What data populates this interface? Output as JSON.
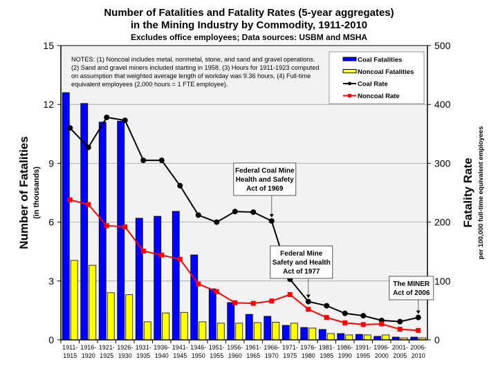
{
  "chart_data": {
    "type": "bar",
    "title": "Number of Fatalities and Fatality Rates (5-year aggregates)",
    "title2": "in the Mining Industry by Commodity, 1911-2010",
    "subtitle": "Excludes office employees; Data sources: USBM and MSHA",
    "ylabel": "Number of Fatalities",
    "ylabel_sub": "(in thousands)",
    "y2label": "Fatality Rate",
    "y2label_sub": "per 100,000 full-time equivalent employees",
    "ylim": [
      0,
      15
    ],
    "yticks": [
      "0",
      "3",
      "6",
      "9",
      "12",
      "15"
    ],
    "y2lim": [
      0,
      500
    ],
    "y2ticks": [
      "0",
      "100",
      "200",
      "300",
      "400",
      "500"
    ],
    "grid": true,
    "legend_position": "top-right",
    "categories": [
      [
        "1911-",
        "1915"
      ],
      [
        "1916-",
        "1920"
      ],
      [
        "1921-",
        "1925"
      ],
      [
        "1926-",
        "1930"
      ],
      [
        "1931-",
        "1935"
      ],
      [
        "1936-",
        "1940"
      ],
      [
        "1941-",
        "1945"
      ],
      [
        "1946-",
        "1950"
      ],
      [
        "1951-",
        "1955"
      ],
      [
        "1956-",
        "1960"
      ],
      [
        "1961-",
        "1965"
      ],
      [
        "1966-",
        "1970"
      ],
      [
        "1971-",
        "1975"
      ],
      [
        "1976-",
        "1980"
      ],
      [
        "1981-",
        "1985"
      ],
      [
        "1986-",
        "1990"
      ],
      [
        "1991-",
        "1995"
      ],
      [
        "1996-",
        "2000"
      ],
      [
        "2001-",
        "2005"
      ],
      [
        "2006-",
        "2010"
      ]
    ],
    "series": [
      {
        "name": "Coal Fatalities",
        "type": "bar",
        "axis": "left",
        "color": "#0000ff",
        "values": [
          12.6,
          12.05,
          11.1,
          11.15,
          6.2,
          6.3,
          6.55,
          4.33,
          2.6,
          1.9,
          1.3,
          1.2,
          0.74,
          0.63,
          0.53,
          0.32,
          0.28,
          0.18,
          0.14,
          0.14
        ]
      },
      {
        "name": "Noncoal Fatalities",
        "type": "bar",
        "axis": "left",
        "color": "#ffff00",
        "values": [
          4.05,
          3.8,
          2.4,
          2.3,
          0.92,
          1.37,
          1.4,
          0.92,
          0.85,
          0.85,
          0.88,
          0.9,
          0.85,
          0.6,
          0.32,
          0.25,
          0.25,
          0.25,
          0.1,
          0.1
        ]
      },
      {
        "name": "Coal Rate",
        "type": "line",
        "axis": "right",
        "color": "#000000",
        "marker": "circle",
        "values": [
          360,
          327,
          378,
          373,
          305,
          305,
          262,
          212,
          200,
          218,
          217,
          202,
          103,
          65,
          58,
          45,
          41,
          33,
          31,
          38
        ]
      },
      {
        "name": "Noncoal Rate",
        "type": "line",
        "axis": "right",
        "color": "#ff0000",
        "marker": "square",
        "values": [
          238,
          230,
          194,
          192,
          151,
          144,
          137,
          95,
          82,
          63,
          62,
          66,
          77,
          52,
          38,
          29,
          26,
          27,
          18,
          16
        ]
      }
    ],
    "notes": [
      "NOTES: (1) Noncoal includes metal, nonmetal, stone, and sand and gravel operations.",
      "(2) Sand and gravel miners included starting in 1958. (3) Hours for 1911-1923 computed",
      "on assumption that weighted average length of workday was 9.36 hours. (4) Full-time",
      "equivalent employees (2,000 hours = 1 FTE employee)."
    ],
    "annotations": [
      {
        "lines": [
          "Federal Coal Mine",
          "Health and Safety",
          "Act of 1969"
        ],
        "category": 11
      },
      {
        "lines": [
          "Federal Mine",
          "Safety and Health",
          "Act of 1977"
        ],
        "category": 13
      },
      {
        "lines": [
          "The MINER",
          "Act of 2006"
        ],
        "category": 19
      }
    ]
  }
}
